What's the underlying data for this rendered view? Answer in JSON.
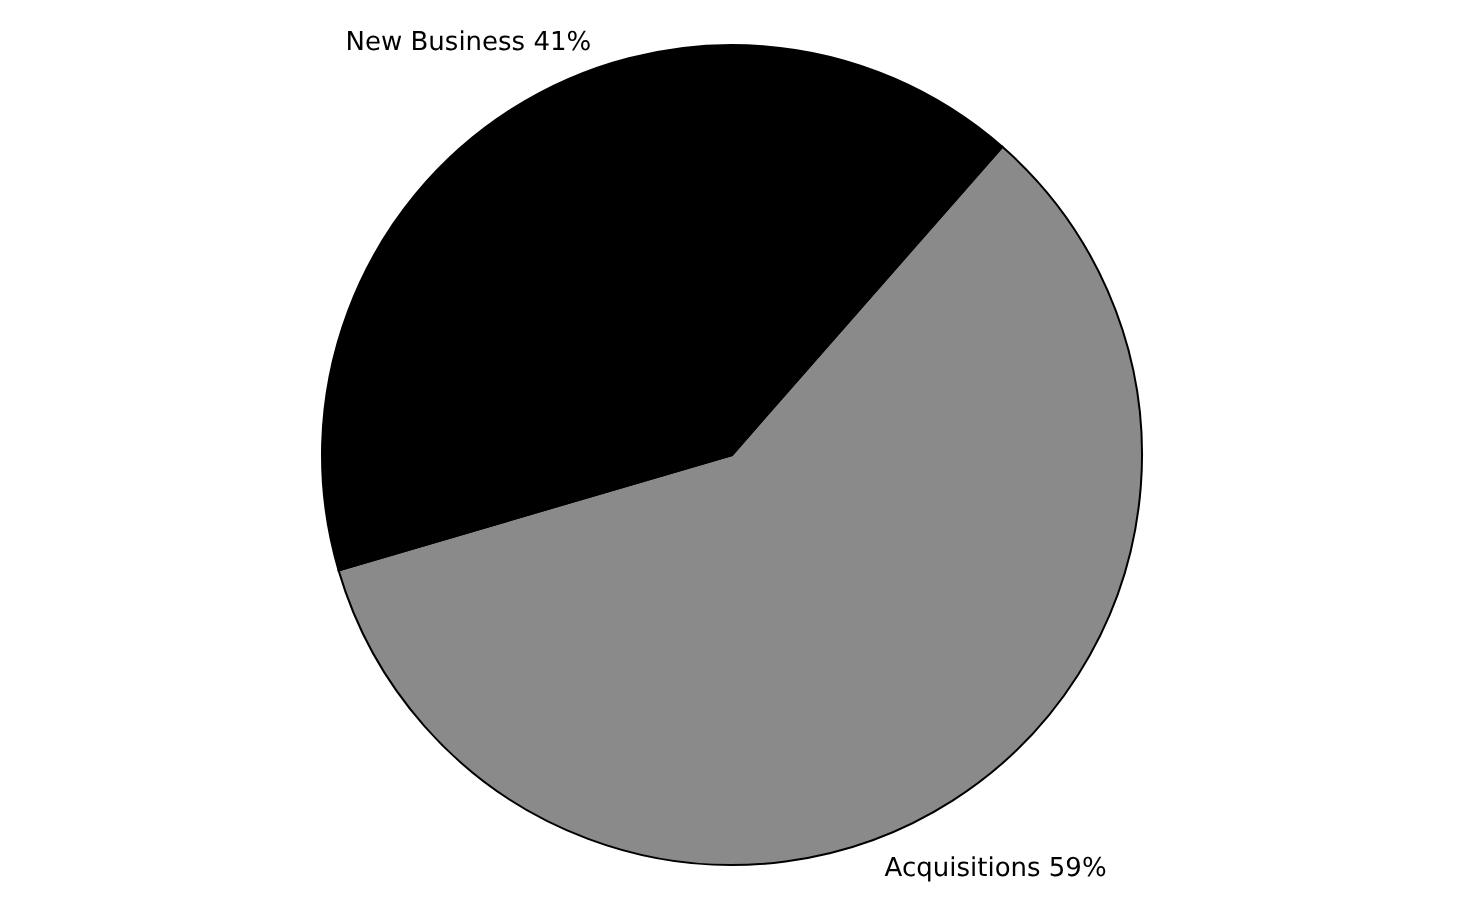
{
  "chart_data": {
    "type": "pie",
    "categories": [
      "Acquisitions",
      "New Business"
    ],
    "values": [
      59,
      41
    ],
    "colors": [
      "#8a8a8a",
      "#000000"
    ],
    "value_labels": [
      "59%",
      "41%"
    ]
  }
}
